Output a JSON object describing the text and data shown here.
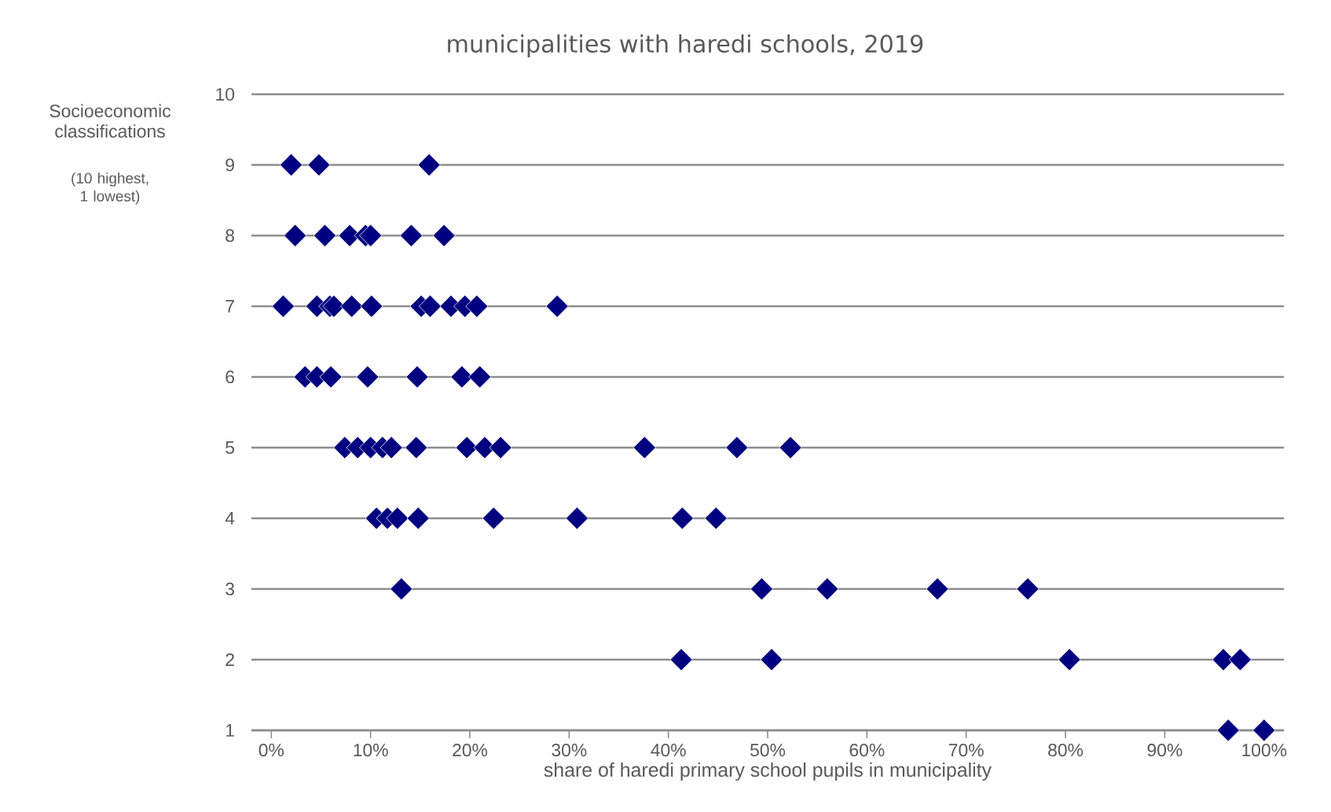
{
  "chart_data": {
    "type": "scatter",
    "title": "municipalities with haredi schools, 2019",
    "xlabel": "share of haredi primary school pupils in municipality",
    "ylabel": "Socioeconomic classifications",
    "annotations": [
      "(10 highest, 1 lowest)"
    ],
    "xlim": [
      -2,
      102
    ],
    "ylim": [
      1,
      10
    ],
    "xticks": [
      {
        "value": 0,
        "label": "0%"
      },
      {
        "value": 10,
        "label": "10%"
      },
      {
        "value": 20,
        "label": "20%"
      },
      {
        "value": 30,
        "label": "30%"
      },
      {
        "value": 40,
        "label": "40%"
      },
      {
        "value": 50,
        "label": "50%"
      },
      {
        "value": 60,
        "label": "60%"
      },
      {
        "value": 70,
        "label": "70%"
      },
      {
        "value": 80,
        "label": "80%"
      },
      {
        "value": 90,
        "label": "90%"
      },
      {
        "value": 100,
        "label": "100%"
      }
    ],
    "yticks": [
      1,
      2,
      3,
      4,
      5,
      6,
      7,
      8,
      9,
      10
    ],
    "grid": "y",
    "marker": "diamond",
    "series": [
      {
        "color": "#000080",
        "x": [
          2.0,
          4.8,
          15.9,
          2.4,
          5.4,
          7.9,
          9.5,
          10.0,
          14.1,
          17.4,
          1.2,
          4.6,
          5.9,
          6.3,
          8.1,
          10.1,
          15.1,
          16.0,
          18.1,
          19.5,
          20.7,
          28.8,
          3.4,
          4.6,
          6.0,
          9.7,
          14.7,
          19.2,
          21.0,
          7.4,
          8.7,
          10.0,
          11.2,
          12.1,
          14.6,
          19.7,
          21.5,
          23.1,
          37.6,
          46.9,
          52.3,
          10.6,
          11.7,
          12.7,
          14.8,
          22.4,
          30.8,
          41.4,
          44.8,
          13.1,
          49.4,
          56.0,
          67.1,
          76.2,
          41.3,
          50.4,
          80.4,
          95.9,
          97.6,
          96.4,
          100
        ],
        "values": [
          9,
          9,
          9,
          8,
          8,
          8,
          8,
          8,
          8,
          8,
          7,
          7,
          7,
          7,
          7,
          7,
          7,
          7,
          7,
          7,
          7,
          7,
          6,
          6,
          6,
          6,
          6,
          6,
          6,
          5,
          5,
          5,
          5,
          5,
          5,
          5,
          5,
          5,
          5,
          5,
          5,
          4,
          4,
          4,
          4,
          4,
          4,
          4,
          4,
          3,
          3,
          3,
          3,
          3,
          2,
          2,
          2,
          2,
          2,
          1,
          1
        ]
      }
    ]
  }
}
